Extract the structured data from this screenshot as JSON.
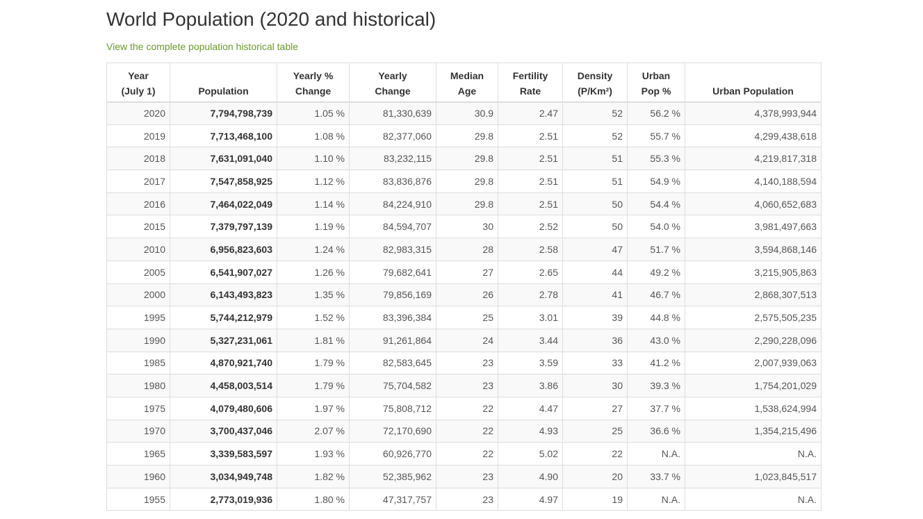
{
  "page": {
    "title": "World Population (2020 and historical)",
    "link_text": "View the complete population historical table",
    "link_color": "#6a9a2a"
  },
  "table": {
    "headers": [
      {
        "line1": "Year",
        "line2": "(July 1)"
      },
      {
        "line1": "",
        "line2": "Population"
      },
      {
        "line1": "Yearly %",
        "line2": "Change"
      },
      {
        "line1": "Yearly",
        "line2": "Change"
      },
      {
        "line1": "Median",
        "line2": "Age"
      },
      {
        "line1": "Fertility",
        "line2": "Rate"
      },
      {
        "line1": "Density",
        "line2": "(P/Km²)"
      },
      {
        "line1": "Urban",
        "line2": "Pop %"
      },
      {
        "line1": "",
        "line2": "Urban Population"
      }
    ],
    "rows": [
      [
        "2020",
        "7,794,798,739",
        "1.05 %",
        "81,330,639",
        "30.9",
        "2.47",
        "52",
        "56.2 %",
        "4,378,993,944"
      ],
      [
        "2019",
        "7,713,468,100",
        "1.08 %",
        "82,377,060",
        "29.8",
        "2.51",
        "52",
        "55.7 %",
        "4,299,438,618"
      ],
      [
        "2018",
        "7,631,091,040",
        "1.10 %",
        "83,232,115",
        "29.8",
        "2.51",
        "51",
        "55.3 %",
        "4,219,817,318"
      ],
      [
        "2017",
        "7,547,858,925",
        "1.12 %",
        "83,836,876",
        "29.8",
        "2.51",
        "51",
        "54.9 %",
        "4,140,188,594"
      ],
      [
        "2016",
        "7,464,022,049",
        "1.14 %",
        "84,224,910",
        "29.8",
        "2.51",
        "50",
        "54.4 %",
        "4,060,652,683"
      ],
      [
        "2015",
        "7,379,797,139",
        "1.19 %",
        "84,594,707",
        "30",
        "2.52",
        "50",
        "54.0 %",
        "3,981,497,663"
      ],
      [
        "2010",
        "6,956,823,603",
        "1.24 %",
        "82,983,315",
        "28",
        "2.58",
        "47",
        "51.7 %",
        "3,594,868,146"
      ],
      [
        "2005",
        "6,541,907,027",
        "1.26 %",
        "79,682,641",
        "27",
        "2.65",
        "44",
        "49.2 %",
        "3,215,905,863"
      ],
      [
        "2000",
        "6,143,493,823",
        "1.35 %",
        "79,856,169",
        "26",
        "2.78",
        "41",
        "46.7 %",
        "2,868,307,513"
      ],
      [
        "1995",
        "5,744,212,979",
        "1.52 %",
        "83,396,384",
        "25",
        "3.01",
        "39",
        "44.8 %",
        "2,575,505,235"
      ],
      [
        "1990",
        "5,327,231,061",
        "1.81 %",
        "91,261,864",
        "24",
        "3.44",
        "36",
        "43.0 %",
        "2,290,228,096"
      ],
      [
        "1985",
        "4,870,921,740",
        "1.79 %",
        "82,583,645",
        "23",
        "3.59",
        "33",
        "41.2 %",
        "2,007,939,063"
      ],
      [
        "1980",
        "4,458,003,514",
        "1.79 %",
        "75,704,582",
        "23",
        "3.86",
        "30",
        "39.3 %",
        "1,754,201,029"
      ],
      [
        "1975",
        "4,079,480,606",
        "1.97 %",
        "75,808,712",
        "22",
        "4.47",
        "27",
        "37.7 %",
        "1,538,624,994"
      ],
      [
        "1970",
        "3,700,437,046",
        "2.07 %",
        "72,170,690",
        "22",
        "4.93",
        "25",
        "36.6 %",
        "1,354,215,496"
      ],
      [
        "1965",
        "3,339,583,597",
        "1.93 %",
        "60,926,770",
        "22",
        "5.02",
        "22",
        "N.A.",
        "N.A."
      ],
      [
        "1960",
        "3,034,949,748",
        "1.82 %",
        "52,385,962",
        "23",
        "4.90",
        "20",
        "33.7 %",
        "1,023,845,517"
      ],
      [
        "1955",
        "2,773,019,936",
        "1.80 %",
        "47,317,757",
        "23",
        "4.97",
        "19",
        "N.A.",
        "N.A."
      ]
    ]
  }
}
